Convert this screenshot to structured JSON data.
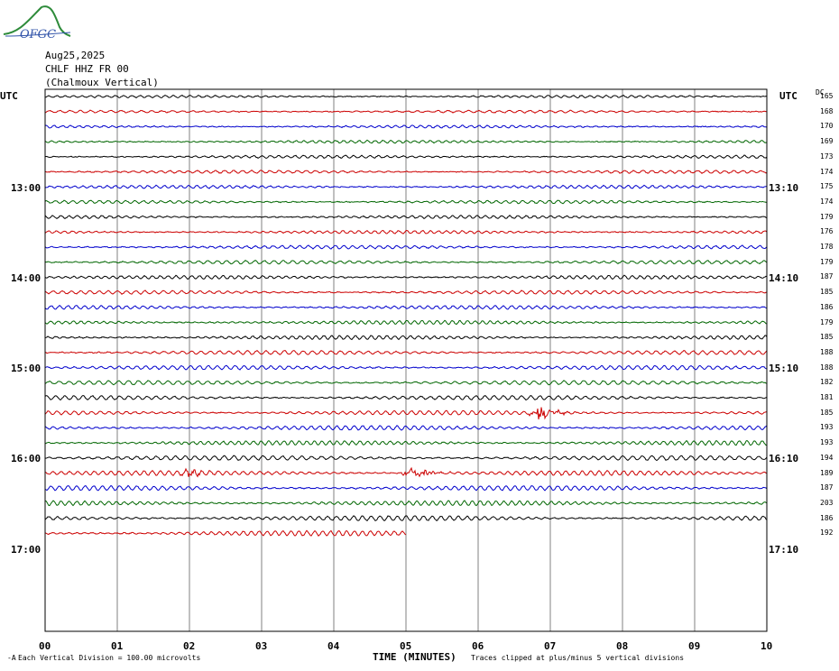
{
  "header": {
    "date": "Aug25,2025",
    "station": "CHLF HHZ FR 00",
    "location": "(Chalmoux Vertical)",
    "logo_text": "OFGC"
  },
  "axis": {
    "left_label": "UTC",
    "right_label": "UTC",
    "dc_label": "DC",
    "xlabel": "TIME (MINUTES)",
    "x_ticks": [
      "00",
      "01",
      "02",
      "03",
      "04",
      "05",
      "06",
      "07",
      "08",
      "09",
      "10"
    ],
    "left_times": [
      "13:00",
      "14:00",
      "15:00",
      "16:00",
      "17:00"
    ],
    "right_times": [
      "13:10",
      "14:10",
      "15:10",
      "16:10",
      "17:10"
    ]
  },
  "footer": {
    "division_note": "Each Vertical Division =  100.00 microvolts",
    "clip_note": "Traces clipped at plus/minus 5 vertical divisions"
  },
  "colors": {
    "trace_cycle": [
      "#000000",
      "#cc0000",
      "#0000cc",
      "#006600"
    ],
    "grid": "#808080",
    "logo": "#2e8b3a",
    "logo_text": "#3355aa"
  },
  "chart_data": {
    "type": "line",
    "title": "",
    "xlabel": "TIME (MINUTES)",
    "ylabel": "UTC",
    "x_range_minutes": [
      0,
      10
    ],
    "grid": true,
    "trace_count": 30,
    "dc_offsets": [
      165,
      168,
      170,
      169,
      173,
      174,
      175,
      174,
      179,
      176,
      178,
      179,
      187,
      185,
      186,
      179,
      185,
      188,
      188,
      182,
      181,
      185,
      193,
      193,
      194,
      189,
      187,
      203,
      186,
      192
    ],
    "last_trace_end_minute": 5,
    "events": [
      {
        "trace": 21,
        "minute": 6.8,
        "amplitude": 1.0
      },
      {
        "trace": 25,
        "minute": 1.95,
        "amplitude": 0.45
      },
      {
        "trace": 25,
        "minute": 5.05,
        "amplitude": 0.8
      }
    ]
  }
}
